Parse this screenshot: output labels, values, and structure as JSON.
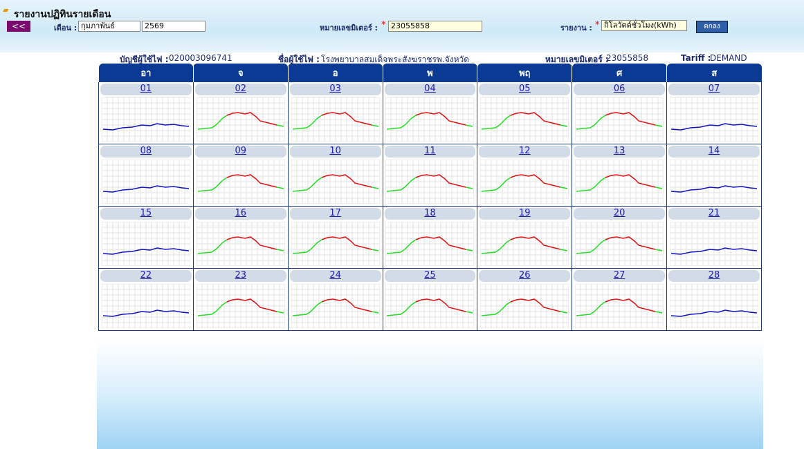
{
  "header": {
    "title": "รายงานปฏิทินรายเดือน",
    "back_button": "<<",
    "month_label": "เดือน :",
    "month": "กุมภาพันธ์",
    "year": "2569",
    "meter_label": "หมายเลขมิเตอร์ :",
    "required_mark": "*",
    "meter": "23055858",
    "report_label": "รายงาน :",
    "report": "กิโลวัตต์ชั่วโมง(kWh)",
    "ok_button": "ตกลง"
  },
  "info": {
    "account_label": "บัญชีผู้ใช้ไฟ :",
    "account": "020003096741",
    "name_label": "ชื่อผู้ใช้ไฟ :",
    "name": "โรงพยาบาลสมเด็จพระสังฆราชรพ.จังหวัด",
    "meter_label": "หมายเลขมิเตอร์ :",
    "meter": "23055858",
    "tariff_label": "Tariff :",
    "tariff": "DEMAND"
  },
  "calendar": {
    "weekdays": [
      "อา",
      "จ",
      "อ",
      "พ",
      "พฤ",
      "ศ",
      "ส"
    ],
    "days": [
      "01",
      "02",
      "03",
      "04",
      "05",
      "06",
      "07",
      "08",
      "09",
      "10",
      "11",
      "12",
      "13",
      "14",
      "15",
      "16",
      "17",
      "18",
      "19",
      "20",
      "21",
      "22",
      "23",
      "24",
      "25",
      "26",
      "27",
      "28"
    ]
  }
}
